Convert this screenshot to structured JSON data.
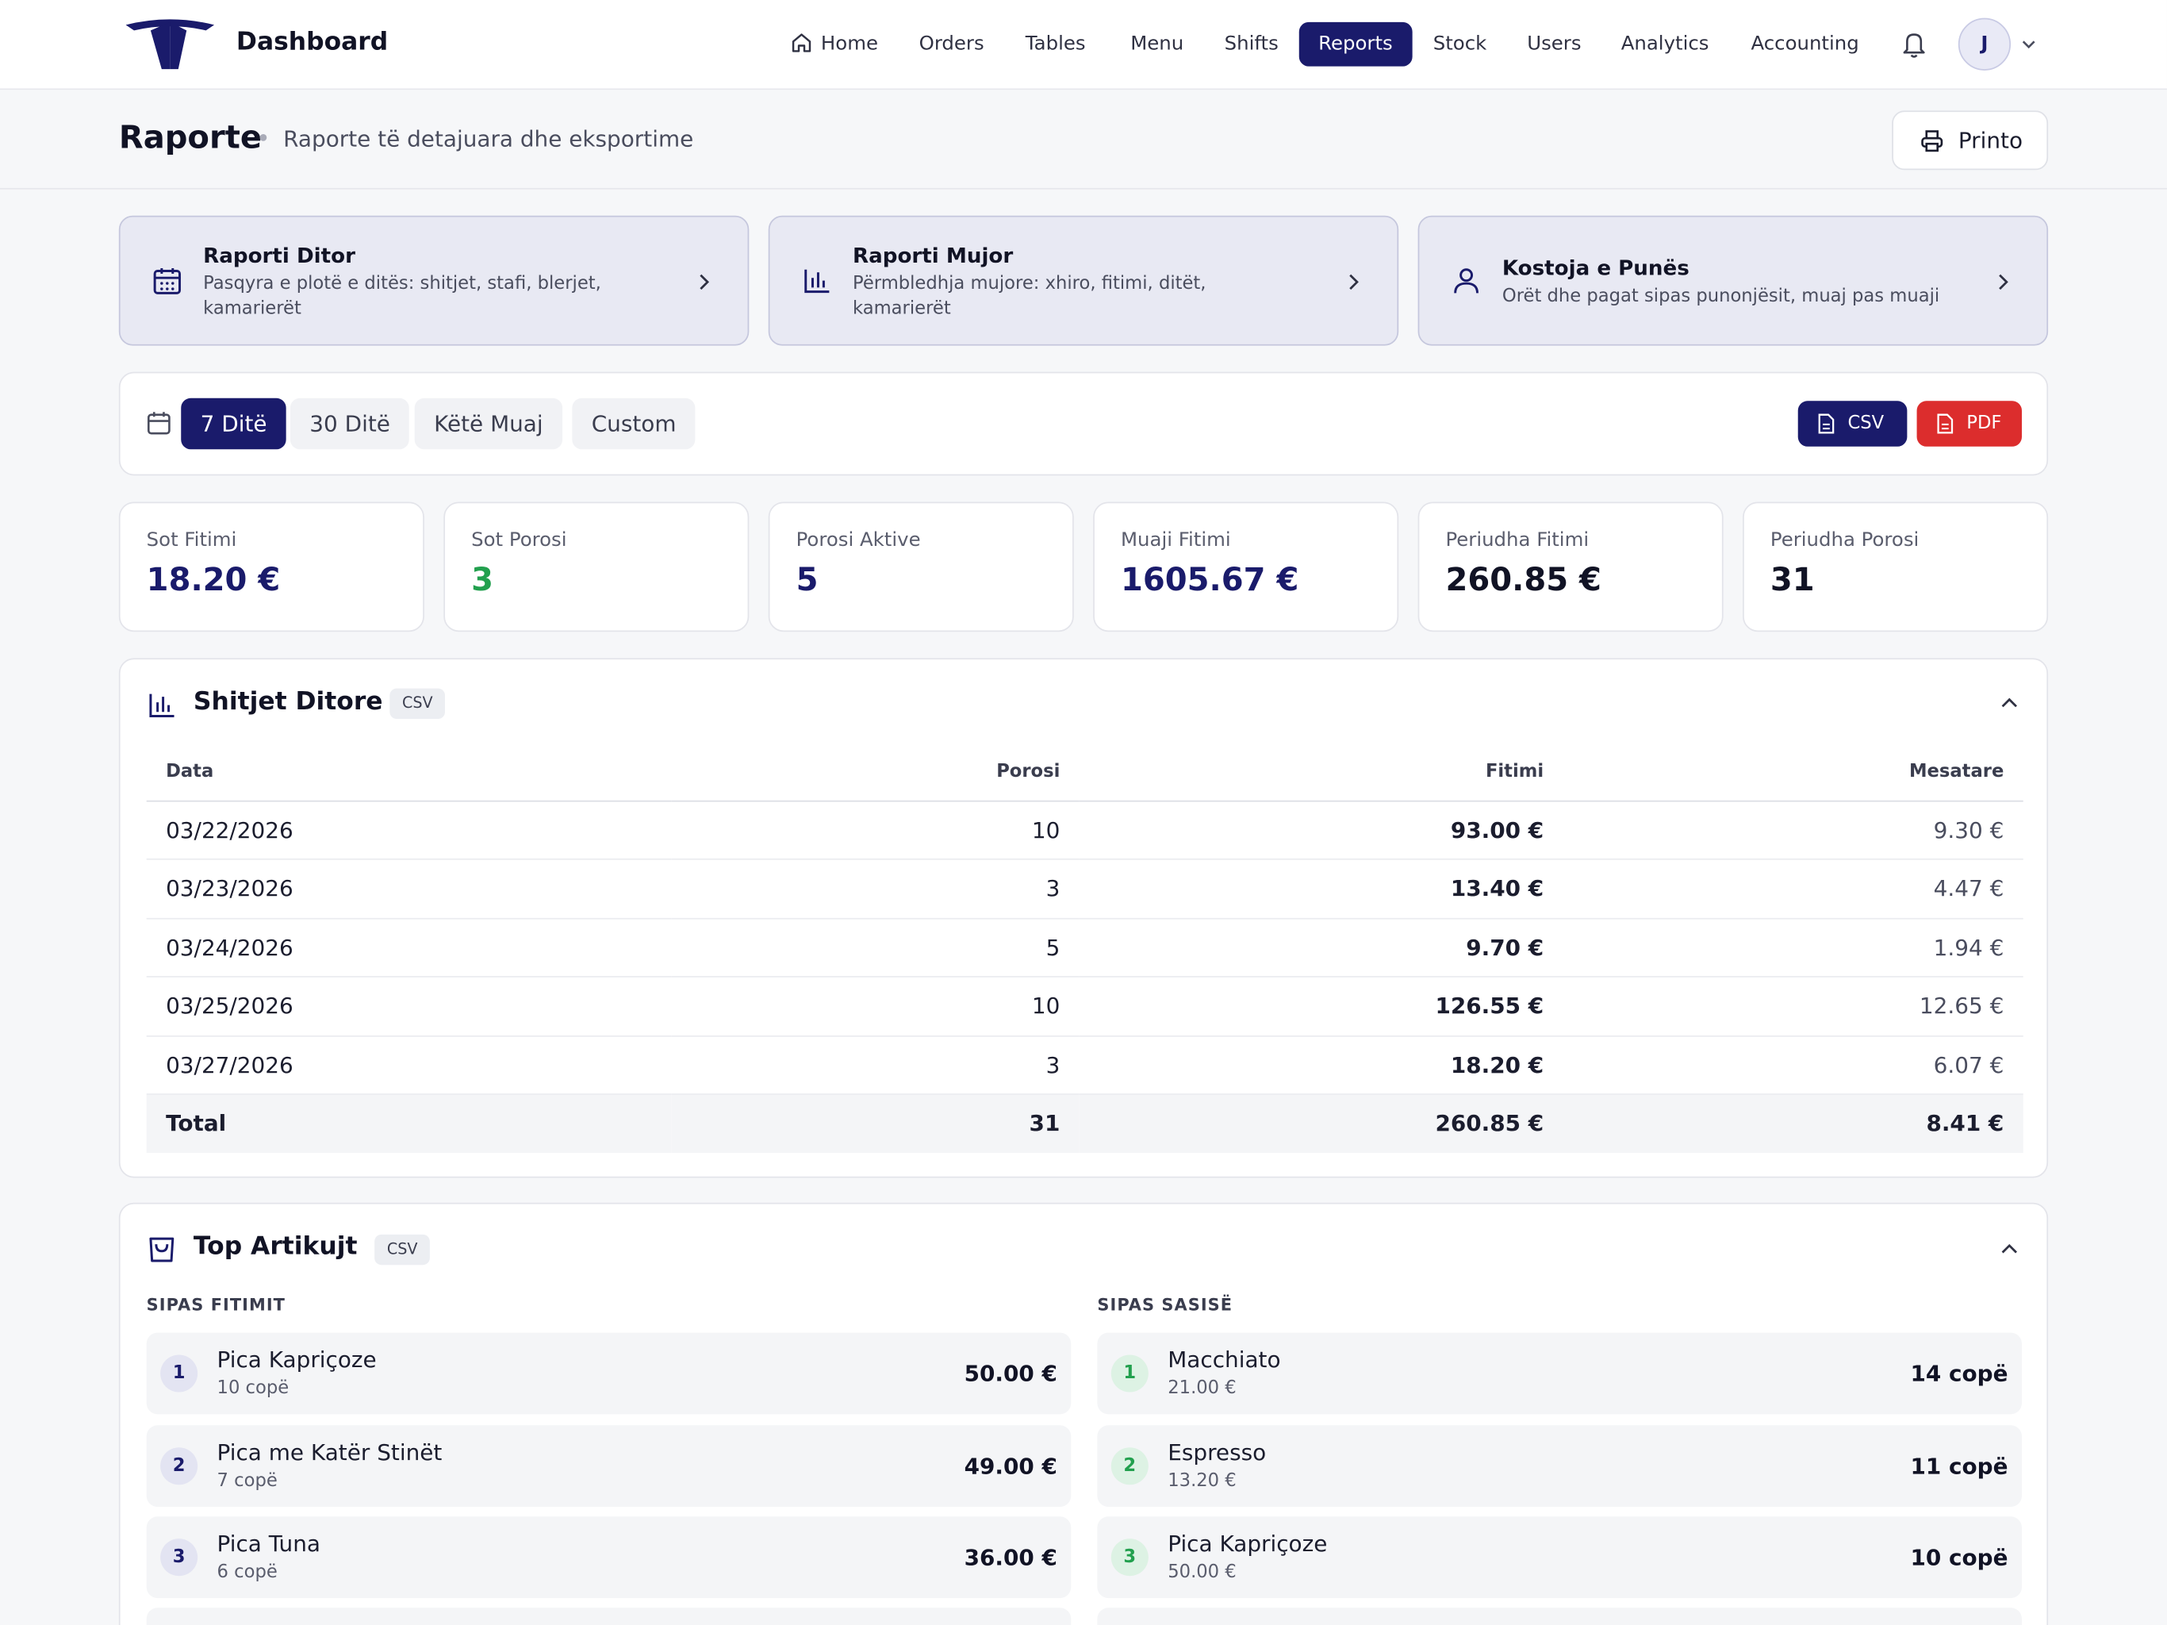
{
  "header": {
    "brand": "Dashboard",
    "nav": [
      {
        "label": "Home"
      },
      {
        "label": "Orders"
      },
      {
        "label": "Tables"
      },
      {
        "label": "Menu"
      },
      {
        "label": "Shifts"
      },
      {
        "label": "Reports",
        "active": true
      },
      {
        "label": "Stock"
      },
      {
        "label": "Users"
      },
      {
        "label": "Analytics"
      },
      {
        "label": "Accounting"
      }
    ],
    "avatar_initial": "J",
    "icons": [
      "home-icon",
      "bell-icon",
      "chevron-down-icon"
    ]
  },
  "page": {
    "title": "Raporte",
    "subtitle": "Raporte të detajuara dhe eksportime",
    "print_label": "Printo"
  },
  "report_cards": [
    {
      "title": "Raporti Ditor",
      "description": "Pasqyra e plotë e ditës: shitjet, stafi, blerjet, kamarierët",
      "icon": "calendar-icon"
    },
    {
      "title": "Raporti Mujor",
      "description": "Përmbledhja mujore: xhiro, fitimi, ditët, kamarierët",
      "icon": "bar-chart-icon"
    },
    {
      "title": "Kostoja e Punës",
      "description": "Orët dhe pagat sipas punonjësit, muaj pas muaji",
      "icon": "user-icon"
    }
  ],
  "filters": {
    "ranges": [
      "7 Ditë",
      "30 Ditë",
      "Këtë Muaj",
      "Custom"
    ],
    "active_range": "7 Ditë",
    "export_csv": "CSV",
    "export_pdf": "PDF"
  },
  "stats": [
    {
      "label": "Sot Fitimi",
      "value": "18.20 €",
      "color": "#1a1b6b"
    },
    {
      "label": "Sot Porosi",
      "value": "3",
      "color": "#22a04e"
    },
    {
      "label": "Porosi Aktive",
      "value": "5",
      "color": "#1a1b6b"
    },
    {
      "label": "Muaji Fitimi",
      "value": "1605.67 €",
      "color": "#1a1b6b"
    },
    {
      "label": "Periudha Fitimi",
      "value": "260.85 €",
      "color": "#111325"
    },
    {
      "label": "Periudha Porosi",
      "value": "31",
      "color": "#111325"
    }
  ],
  "daily_sales": {
    "title": "Shitjet Ditore",
    "csv_tag": "CSV",
    "columns": [
      "Data",
      "Porosi",
      "Fitimi",
      "Mesatare"
    ],
    "rows": [
      [
        "03/22/2026",
        "10",
        "93.00 €",
        "9.30 €"
      ],
      [
        "03/23/2026",
        "3",
        "13.40 €",
        "4.47 €"
      ],
      [
        "03/24/2026",
        "5",
        "9.70 €",
        "1.94 €"
      ],
      [
        "03/25/2026",
        "10",
        "126.55 €",
        "12.65 €"
      ],
      [
        "03/27/2026",
        "3",
        "18.20 €",
        "6.07 €"
      ]
    ],
    "total": [
      "Total",
      "31",
      "260.85 €",
      "8.41 €"
    ]
  },
  "top_items": {
    "title": "Top Artikujt",
    "csv_tag": "CSV",
    "by_profit": {
      "heading": "SIPAS FITIMIT",
      "items": [
        {
          "rank": "1",
          "name": "Pica Kapriçoze",
          "sub": "10 copë",
          "value": "50.00 €"
        },
        {
          "rank": "2",
          "name": "Pica me Katër Stinët",
          "sub": "7 copë",
          "value": "49.00 €"
        },
        {
          "rank": "3",
          "name": "Pica Tuna",
          "sub": "6 copë",
          "value": "36.00 €"
        }
      ]
    },
    "by_quantity": {
      "heading": "SIPAS SASISË",
      "items": [
        {
          "rank": "1",
          "name": "Macchiato",
          "sub": "21.00 €",
          "value": "14 copë"
        },
        {
          "rank": "2",
          "name": "Espresso",
          "sub": "13.20 €",
          "value": "11 copë"
        },
        {
          "rank": "3",
          "name": "Pica Kapriçoze",
          "sub": "50.00 €",
          "value": "10 copë"
        }
      ]
    }
  }
}
